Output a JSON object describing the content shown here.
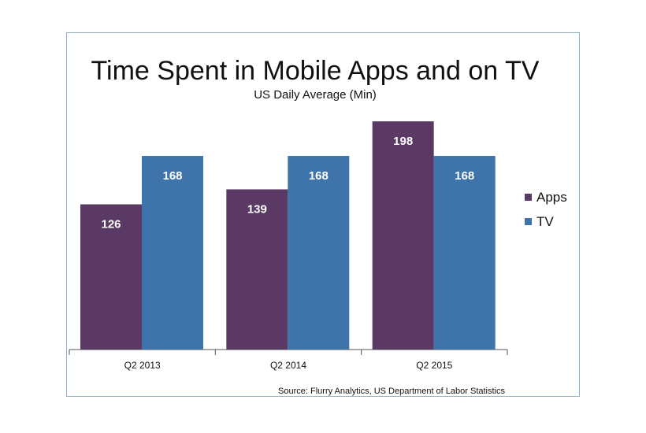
{
  "chart_data": {
    "type": "bar",
    "title": "Time Spent in Mobile Apps and on TV",
    "subtitle": "US Daily Average (Min)",
    "categories": [
      "Q2 2013",
      "Q2 2014",
      "Q2 2015"
    ],
    "series": [
      {
        "name": "Apps",
        "values": [
          126,
          139,
          198
        ],
        "color": "#5a3a64"
      },
      {
        "name": "TV",
        "values": [
          168,
          168,
          168
        ],
        "color": "#3e74aa"
      }
    ],
    "ylim": [
      0,
      210
    ],
    "grid": false,
    "legend_position": "right",
    "data_labels": true,
    "source": "Source: Flurry Analytics, US Department of Labor Statistics"
  }
}
